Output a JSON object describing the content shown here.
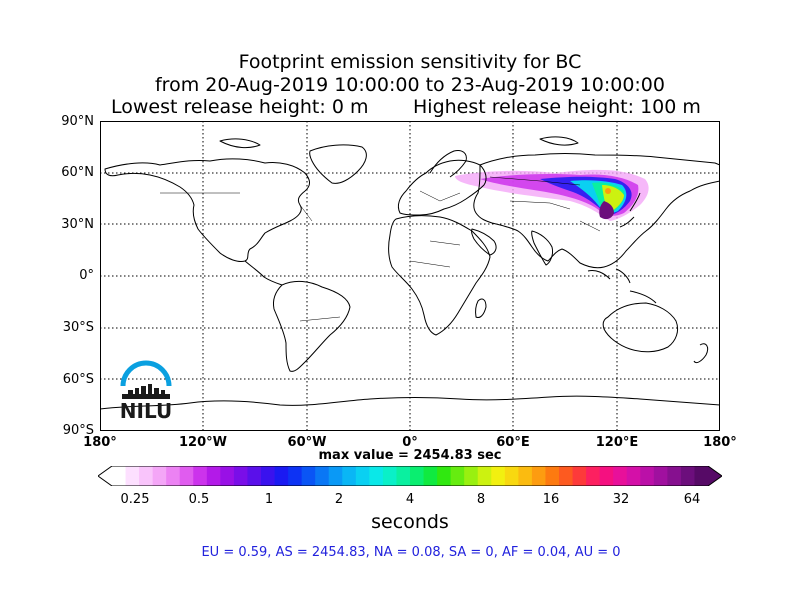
{
  "title": {
    "line1": "Footprint emission sensitivity for BC",
    "line2": "from 20-Aug-2019 10:00:00 to 23-Aug-2019 10:00:00",
    "line3a": "Lowest release height: 0 m",
    "line3b": "Highest release height: 100 m"
  },
  "map": {
    "projection": "cylindrical",
    "lat_labels": [
      "90°N",
      "60°N",
      "30°N",
      "0°",
      "30°S",
      "60°S",
      "90°S"
    ],
    "lon_labels": [
      "180°",
      "120°W",
      "60°W",
      "0°",
      "60°E",
      "120°E",
      "180°"
    ],
    "grid": "dotted",
    "sensitivity_region": "Northern Asia plume from Kazakhstan to Northeast China, maximum over Northeast China"
  },
  "max_value": "max value = 2454.83 sec",
  "colorbar": {
    "ticks": [
      "0.25",
      "0.5",
      "1",
      "2",
      "4",
      "8",
      "16",
      "32",
      "64"
    ],
    "unit": "seconds",
    "colors": [
      "#ffffff",
      "#fde0ff",
      "#f9c4fb",
      "#f4a6f7",
      "#ec82f3",
      "#e05cef",
      "#cc33ec",
      "#b31ae8",
      "#9910e6",
      "#7a0ee8",
      "#5a10ea",
      "#3a12ee",
      "#1a1af2",
      "#0d33f4",
      "#0a55f5",
      "#0a77f5",
      "#0a99f6",
      "#0ab6f5",
      "#0ad0f2",
      "#0ae8e8",
      "#0af0c8",
      "#0af0a0",
      "#0aee70",
      "#10ea40",
      "#30e810",
      "#66ec10",
      "#99f010",
      "#ccf210",
      "#f2f010",
      "#f8d810",
      "#fbbb10",
      "#fd9c10",
      "#fd7a10",
      "#fd5a20",
      "#fd3a3a",
      "#fd2060",
      "#f51080",
      "#e8109a",
      "#d410a8",
      "#bb10a8",
      "#a0109f",
      "#86108f",
      "#6c0e7c",
      "#560a66"
    ]
  },
  "stats": "EU = 0.59,  AS = 2454.83,  NA = 0.08,  SA = 0,  AF = 0.04,  AU = 0",
  "logo": {
    "text": "NILU",
    "arc_color": "#0aa0e0"
  }
}
